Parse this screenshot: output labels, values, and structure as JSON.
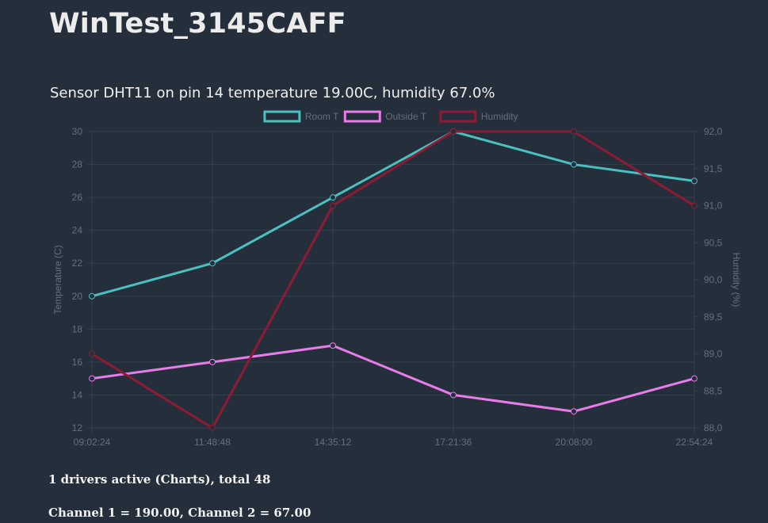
{
  "page": {
    "title": "WinTest_3145CAFF",
    "sensor_text": "Sensor DHT11 on pin 14 temperature 19.00C, humidity 67.0%",
    "footer_drivers": "1 drivers active (Charts), total 48",
    "footer_channels": "Channel 1 = 190.00, Channel 2 = 67.00"
  },
  "colors": {
    "background": "#252f3b",
    "grid": "#33404c",
    "axis_text": "#66707a",
    "room_t": "#4bc0c0",
    "outside_t": "#e87ce8",
    "humidity": "#8e1b35"
  },
  "chart_data": {
    "type": "line",
    "x": [
      "09:02:24",
      "11:48:48",
      "14:35:12",
      "17:21:36",
      "20:08:00",
      "22:54:24"
    ],
    "y_left": {
      "label": "Temperature (C)",
      "lim": [
        12,
        30
      ],
      "ticks": [
        "12",
        "14",
        "16",
        "18",
        "20",
        "22",
        "24",
        "26",
        "28",
        "30"
      ]
    },
    "y_right": {
      "label": "Humidity (%)",
      "lim": [
        88.0,
        92.0
      ],
      "ticks": [
        "88,0",
        "88,5",
        "89,0",
        "89,5",
        "90,0",
        "90,5",
        "91,0",
        "91,5",
        "92,0"
      ]
    },
    "legend_position": "top",
    "grid": true,
    "series": [
      {
        "name": "Room T",
        "axis": "left",
        "color": "#4bc0c0",
        "values": [
          20,
          22,
          26,
          30,
          28,
          27
        ]
      },
      {
        "name": "Outside T",
        "axis": "left",
        "color": "#e87ce8",
        "values": [
          15,
          16,
          17,
          14,
          13,
          15
        ]
      },
      {
        "name": "Humidity",
        "axis": "right",
        "color": "#8e1b35",
        "values": [
          89.0,
          88.0,
          91.0,
          92.0,
          92.0,
          91.0
        ]
      }
    ]
  }
}
